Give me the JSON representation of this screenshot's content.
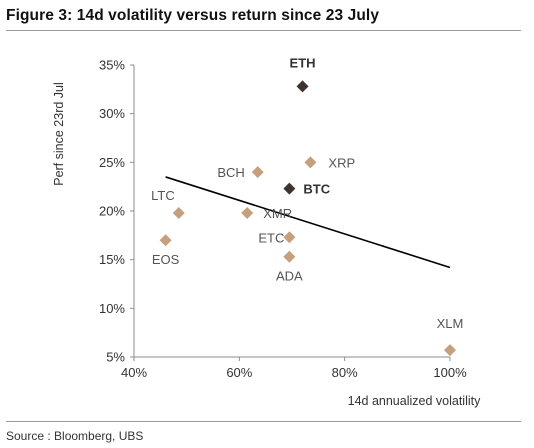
{
  "figure": {
    "title": "Figure 3: 14d volatility versus return since 23 July",
    "source": "Source : Bloomberg, UBS"
  },
  "chart_data": {
    "type": "scatter",
    "title": "Figure 3: 14d volatility versus return since 23 July",
    "xlabel": "14d annualized volatility",
    "ylabel": "Perf since 23rd Jul",
    "xlim": [
      40,
      100
    ],
    "ylim": [
      5,
      35
    ],
    "x_ticks": [
      "40%",
      "60%",
      "80%",
      "100%"
    ],
    "y_ticks": [
      "5%",
      "10%",
      "15%",
      "20%",
      "25%",
      "30%",
      "35%"
    ],
    "grid": false,
    "legend": "none",
    "colors": {
      "default": "#C4A07F",
      "highlight": "#3F3330",
      "trend": "#000000"
    },
    "points": [
      {
        "label": "ETH",
        "x": 72.0,
        "y": 32.8,
        "highlight": true
      },
      {
        "label": "BTC",
        "x": 69.5,
        "y": 22.3,
        "highlight": true
      },
      {
        "label": "XRP",
        "x": 73.5,
        "y": 25.0,
        "highlight": false
      },
      {
        "label": "BCH",
        "x": 63.5,
        "y": 24.0,
        "highlight": false
      },
      {
        "label": "LTC",
        "x": 48.5,
        "y": 19.8,
        "highlight": false
      },
      {
        "label": "XMR",
        "x": 61.5,
        "y": 19.8,
        "highlight": false
      },
      {
        "label": "ETC",
        "x": 69.5,
        "y": 17.3,
        "highlight": false
      },
      {
        "label": "EOS",
        "x": 46.0,
        "y": 17.0,
        "highlight": false
      },
      {
        "label": "ADA",
        "x": 69.5,
        "y": 15.3,
        "highlight": false
      },
      {
        "label": "XLM",
        "x": 100.0,
        "y": 5.7,
        "highlight": false
      }
    ],
    "trendline": {
      "x": [
        46,
        100
      ],
      "y": [
        23.5,
        14.2
      ]
    }
  }
}
